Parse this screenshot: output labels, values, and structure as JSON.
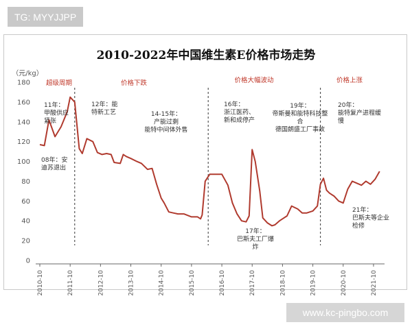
{
  "watermark_top": "TG: MYYJJPP",
  "watermark_bottom": "www.kc-pingbo.com",
  "chart_data": {
    "type": "line",
    "title": "2010-2022年中国维生素E价格市场走势",
    "ylabel": "（元/kg）",
    "xlabel": "",
    "ylim": [
      0,
      180
    ],
    "yticks": [
      0,
      20,
      40,
      60,
      80,
      100,
      120,
      140,
      160,
      180
    ],
    "xlim": [
      2010.75,
      2022.0
    ],
    "xtick_labels": [
      "2010-10",
      "2011-10",
      "2012-10",
      "2013-10",
      "2014-10",
      "2015-10",
      "2016-10",
      "2017-10",
      "2018-10",
      "2019-10",
      "2020-10",
      "2021-10"
    ],
    "xtick_values": [
      2010.75,
      2011.75,
      2012.75,
      2013.75,
      2014.75,
      2015.75,
      2016.75,
      2017.75,
      2018.75,
      2019.75,
      2020.75,
      2021.75
    ],
    "grid": false,
    "line_color": "#b03a2e",
    "x": [
      2010.75,
      2010.9,
      2011.05,
      2011.25,
      2011.45,
      2011.65,
      2011.75,
      2011.9,
      2012.05,
      2012.15,
      2012.3,
      2012.5,
      2012.65,
      2012.8,
      2012.95,
      2013.1,
      2013.2,
      2013.4,
      2013.5,
      2013.6,
      2013.75,
      2013.95,
      2014.1,
      2014.3,
      2014.45,
      2014.6,
      2014.75,
      2014.85,
      2015.0,
      2015.15,
      2015.3,
      2015.5,
      2015.75,
      2015.95,
      2016.05,
      2016.1,
      2016.2,
      2016.35,
      2016.5,
      2016.75,
      2016.95,
      2017.1,
      2017.25,
      2017.4,
      2017.55,
      2017.65,
      2017.75,
      2017.85,
      2018.0,
      2018.1,
      2018.25,
      2018.4,
      2018.5,
      2018.65,
      2018.75,
      2018.9,
      2019.05,
      2019.25,
      2019.4,
      2019.55,
      2019.75,
      2019.9,
      2020.0,
      2020.1,
      2020.2,
      2020.3,
      2020.45,
      2020.6,
      2020.75,
      2020.9,
      2021.05,
      2021.2,
      2021.35,
      2021.5,
      2021.65,
      2021.8,
      2021.95
    ],
    "y": [
      117,
      116,
      142,
      125,
      135,
      150,
      165,
      160,
      113,
      108,
      123,
      120,
      109,
      107,
      108,
      107,
      99,
      98,
      107,
      105,
      103,
      100,
      98,
      92,
      93,
      77,
      63,
      58,
      49,
      48,
      47,
      47,
      44,
      44,
      42,
      46,
      80,
      87,
      87,
      87,
      76,
      58,
      47,
      40,
      39,
      45,
      112,
      100,
      70,
      43,
      38,
      35,
      36,
      40,
      42,
      45,
      55,
      52,
      48,
      48,
      50,
      55,
      77,
      83,
      71,
      68,
      65,
      60,
      58,
      72,
      80,
      78,
      76,
      80,
      77,
      82,
      90
    ],
    "phase_labels": [
      "超级周期",
      "价格下跌",
      "价格大幅波动",
      "价格上涨"
    ],
    "annotations": [
      {
        "lines": [
          "11年：",
          "甲酸供应",
          "紧张"
        ]
      },
      {
        "lines": [
          "08年：安",
          "迪苏退出"
        ]
      },
      {
        "lines": [
          "12年：能",
          "特新工艺"
        ]
      },
      {
        "lines": [
          "14-15年：",
          "产能过剩",
          "能特中间体外售"
        ]
      },
      {
        "lines": [
          "16年：",
          "浙江医药、",
          "新和成停产"
        ]
      },
      {
        "lines": [
          "19年：",
          "帝斯曼和能特科技整",
          "合",
          "德国朗盛工厂事故"
        ]
      },
      {
        "lines": [
          "17年：",
          "巴斯夫工厂爆",
          "炸"
        ]
      },
      {
        "lines": [
          "20年：",
          "能特复产进程缓",
          "慢"
        ]
      },
      {
        "lines": [
          "21年：",
          "巴斯夫等企业",
          "检修"
        ]
      }
    ]
  }
}
